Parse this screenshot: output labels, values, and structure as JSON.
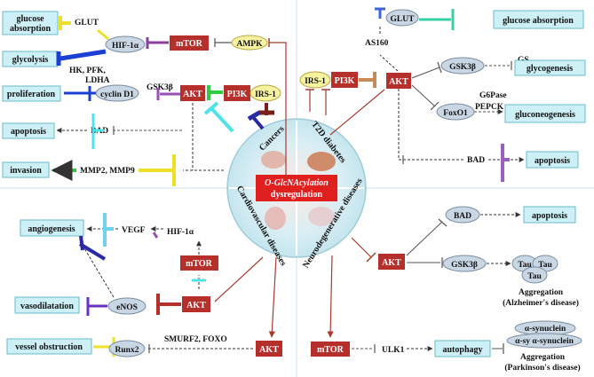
{
  "center": {
    "line1": "O-GlcNAcylation",
    "line2": "dysregulation",
    "quadrants": {
      "cancers": "Cancers",
      "t2d": "T2D diabetes",
      "cardio": "Cardiovascular diseases",
      "neuro": "Neurodegenerative diseases"
    }
  },
  "cancer": {
    "glucose_absorption": "glucose absorption",
    "glycolysis": "glycolysis",
    "proliferation": "proliferation",
    "apoptosis": "apoptosis",
    "invasion": "invasion",
    "glut": "GLUT",
    "hif1a": "HIF-1α",
    "mtor": "mTOR",
    "ampk": "AMPK",
    "enzymes_1": "HK, PFK,",
    "enzymes_2": "LDHA",
    "cyclin_d1": "cyclin D1",
    "gsk3b": "GSK3β",
    "akt": "AKT",
    "pi3k": "PI3K",
    "irs1": "IRS-1",
    "bad": "BAD",
    "mmp": "MMP2, MMP9"
  },
  "t2d": {
    "glut": "GLUT",
    "glucose_absorption": "glucose absorption",
    "as160": "AS160",
    "irs1": "IRS-1",
    "pi3k": "PI3K",
    "akt": "AKT",
    "gsk3b": "GSK3β",
    "gs": "GS",
    "glycogenesis": "glycogenesis",
    "g6pase": "G6Pase",
    "pepck": "PEPCK",
    "foxo1": "FoxO1",
    "gluconeogenesis": "gluconeogenesis",
    "bad": "BAD",
    "apoptosis": "apoptosis"
  },
  "cardio": {
    "angiogenesis": "angiogenesis",
    "vegf": "VEGF",
    "hif1a": "HIF-1α",
    "mtor": "mTOR",
    "vasodilatation": "vasodilatation",
    "enos": "eNOS",
    "akt": "AKT",
    "vessel_obstruction": "vessel obstruction",
    "runx2": "Runx2",
    "smurf2": "SMURF2, FOXO",
    "akt2": "AKT"
  },
  "neuro": {
    "bad": "BAD",
    "apoptosis": "apoptosis",
    "akt": "AKT",
    "gsk3b": "GSK3β",
    "tau": "Tau",
    "aggregation_1": "Aggregation",
    "alzheimer": "(Alzheimer's disease)",
    "mtor": "mTOR",
    "ulk1": "ULK1",
    "autophagy": "autophagy",
    "synuclein": "α-synuclein",
    "synuclein_pair": "α-sy α-synuclein",
    "aggregation_2": "Aggregation",
    "parkinson": "(Parkinson's disease)"
  },
  "colors": {
    "cyan_box": "#cdf0f6",
    "red_box": "#b5302a",
    "ellipse": "#c9d6e3",
    "yellow_ellipse": "#f6f2a0",
    "arrow": "#333333",
    "inhibit_red": "#a83a2c"
  }
}
